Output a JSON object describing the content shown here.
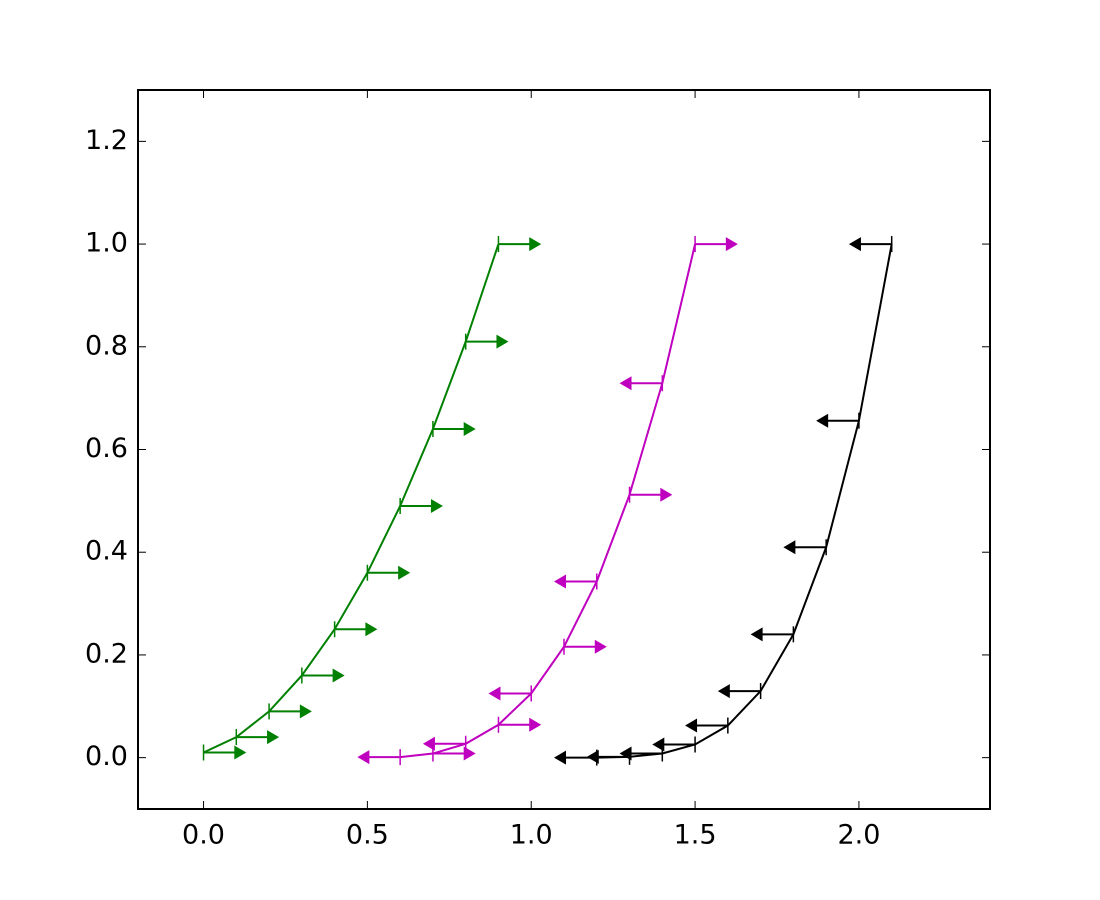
{
  "chart_data": {
    "type": "errorbar",
    "series": [
      {
        "color": "#008000",
        "x": [
          0.0,
          0.1,
          0.2,
          0.3,
          0.4,
          0.5,
          0.6,
          0.7,
          0.8,
          0.9
        ],
        "values": [
          0.01,
          0.04,
          0.09,
          0.16,
          0.25,
          0.36,
          0.49,
          0.64,
          0.81,
          1.0
        ],
        "xerr": 0.1,
        "arrows": [
          "right",
          "right",
          "right",
          "right",
          "right",
          "right",
          "right",
          "right",
          "right",
          "right"
        ]
      },
      {
        "color": "#bf00bf",
        "x": [
          0.6,
          0.7,
          0.8,
          0.9,
          1.0,
          1.1,
          1.2,
          1.3,
          1.4,
          1.5
        ],
        "values": [
          0.001,
          0.008,
          0.027,
          0.064,
          0.125,
          0.216,
          0.343,
          0.512,
          0.729,
          1.0
        ],
        "xerr": 0.1,
        "arrows": [
          "left",
          "right",
          "left",
          "right",
          "left",
          "right",
          "left",
          "right",
          "left",
          "right"
        ]
      },
      {
        "color": "#000000",
        "x": [
          1.2,
          1.3,
          1.4,
          1.5,
          1.6,
          1.7,
          1.8,
          1.9,
          2.0,
          2.1
        ],
        "values": [
          0.0001,
          0.0016,
          0.0081,
          0.0256,
          0.0625,
          0.1296,
          0.2401,
          0.4096,
          0.6561,
          1.0
        ],
        "xerr": 0.1,
        "arrows": [
          "left",
          "left",
          "left",
          "left",
          "left",
          "left",
          "left",
          "left",
          "left",
          "left"
        ]
      }
    ],
    "xlim": [
      -0.2,
      2.4
    ],
    "ylim": [
      -0.1,
      1.3
    ],
    "xticks": [
      {
        "value": 0,
        "label": "0.0"
      },
      {
        "value": 0.5,
        "label": "0.5"
      },
      {
        "value": 1,
        "label": "1.0"
      },
      {
        "value": 1.5,
        "label": "1.5"
      },
      {
        "value": 2,
        "label": "2.0"
      }
    ],
    "yticks": [
      {
        "value": 0,
        "label": "0.0"
      },
      {
        "value": 0.2,
        "label": "0.2"
      },
      {
        "value": 0.4,
        "label": "0.4"
      },
      {
        "value": 0.6,
        "label": "0.6"
      },
      {
        "value": 0.8,
        "label": "0.8"
      },
      {
        "value": 1,
        "label": "1.0"
      },
      {
        "value": 1.2,
        "label": "1.2"
      }
    ],
    "grid": false
  }
}
